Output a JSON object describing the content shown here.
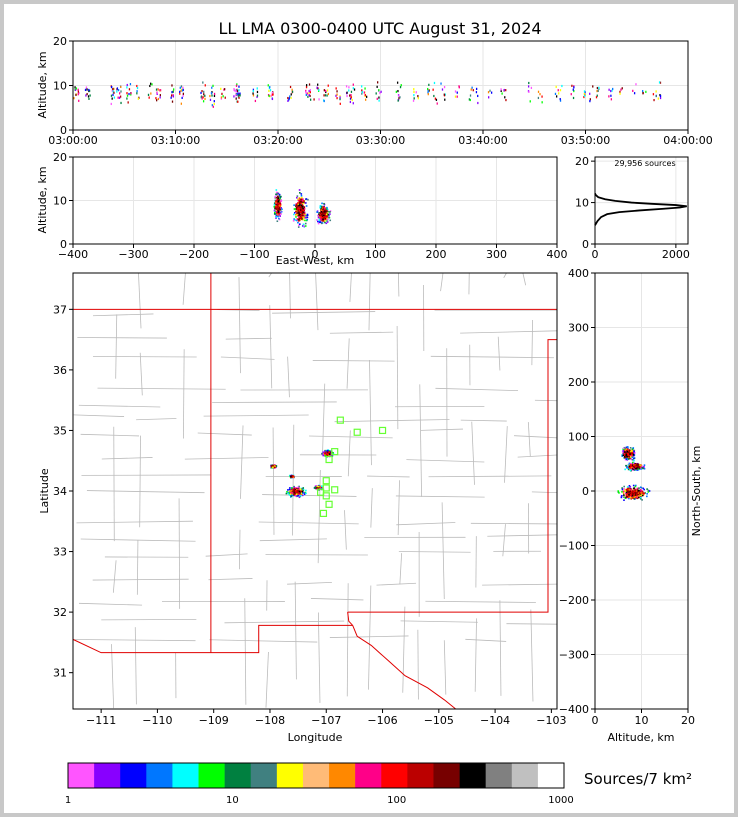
{
  "chart_data": [
    {
      "id": "time_altitude",
      "type": "scatter",
      "title": "LL LMA 0300-0400 UTC August 31, 2024",
      "xlabel": "",
      "ylabel": "Altitude, km",
      "xlim": [
        "03:00:00",
        "04:00:00"
      ],
      "ylim": [
        0,
        20
      ],
      "xticks": [
        "03:00:00",
        "03:10:00",
        "03:20:00",
        "03:30:00",
        "03:40:00",
        "03:50:00",
        "04:00:00"
      ],
      "yticks": [
        "0",
        "10",
        "20"
      ],
      "grid": true,
      "typical_altitude_range_km": [
        5,
        12
      ]
    },
    {
      "id": "eastwest_altitude",
      "type": "heatmap",
      "xlabel": "East-West, km",
      "ylabel": "Altitude, km",
      "xlim": [
        -400,
        400
      ],
      "ylim": [
        0,
        20
      ],
      "xticks": [
        "−400",
        "−300",
        "−200",
        "−100",
        "0",
        "100",
        "200",
        "300",
        "400"
      ],
      "yticks": [
        "0",
        "10",
        "20"
      ],
      "grid": true,
      "clusters": [
        {
          "x": [
            -70,
            -55
          ],
          "alt": [
            5,
            13
          ]
        },
        {
          "x": [
            -40,
            -10
          ],
          "alt": [
            3,
            13
          ]
        },
        {
          "x": [
            0,
            25
          ],
          "alt": [
            4,
            10
          ]
        }
      ]
    },
    {
      "id": "altitude_histogram",
      "type": "line",
      "annotation": "29,956 sources",
      "xlim": [
        0,
        2300
      ],
      "ylim": [
        0,
        21
      ],
      "xticks": [
        "0",
        "2000"
      ],
      "yticks": [
        "0",
        "10",
        "20"
      ],
      "grid": true,
      "points": [
        [
          0,
          4.5
        ],
        [
          60,
          5.5
        ],
        [
          150,
          6.5
        ],
        [
          300,
          7.2
        ],
        [
          600,
          7.7
        ],
        [
          1100,
          8.1
        ],
        [
          1700,
          8.5
        ],
        [
          2100,
          8.8
        ],
        [
          2270,
          9.1
        ],
        [
          2000,
          9.4
        ],
        [
          1400,
          9.7
        ],
        [
          900,
          10.0
        ],
        [
          500,
          10.4
        ],
        [
          250,
          10.8
        ],
        [
          80,
          11.3
        ],
        [
          20,
          11.8
        ],
        [
          0,
          12.2
        ]
      ]
    },
    {
      "id": "plan_view_map",
      "type": "scatter",
      "xlabel": "Longitude",
      "ylabel": "Latitude",
      "xlim": [
        -111.5,
        -102.9
      ],
      "ylim": [
        30.4,
        37.6
      ],
      "xticks": [
        "−111",
        "−110",
        "−109",
        "−108",
        "−107",
        "−106",
        "−105",
        "−104",
        "−103"
      ],
      "yticks": [
        "31",
        "32",
        "33",
        "34",
        "35",
        "36",
        "37"
      ],
      "state_border_color": "#e00000",
      "county_line_color": "#bbbbbb",
      "station_color": "#66ff33",
      "stations": [
        [
          -106.75,
          35.17
        ],
        [
          -106.45,
          34.97
        ],
        [
          -106.0,
          35.0
        ],
        [
          -106.85,
          34.65
        ],
        [
          -106.95,
          34.52
        ],
        [
          -107.0,
          34.17
        ],
        [
          -107.0,
          34.05
        ],
        [
          -106.85,
          34.02
        ],
        [
          -107.1,
          33.98
        ],
        [
          -107.0,
          33.92
        ],
        [
          -106.95,
          33.78
        ],
        [
          -107.05,
          33.63
        ]
      ],
      "source_clusters": [
        {
          "lon": -107.55,
          "lat": 34.0,
          "radius_deg": 0.2
        },
        {
          "lon": -107.15,
          "lat": 34.07,
          "radius_deg": 0.09
        },
        {
          "lon": -106.98,
          "lat": 34.63,
          "radius_deg": 0.12
        },
        {
          "lon": -107.95,
          "lat": 34.42,
          "radius_deg": 0.07
        },
        {
          "lon": -107.62,
          "lat": 34.25,
          "radius_deg": 0.05
        }
      ]
    },
    {
      "id": "northsouth_altitude",
      "type": "heatmap",
      "xlabel": "Altitude, km",
      "ylabel": "North-South, km",
      "xlim": [
        0,
        20
      ],
      "ylim": [
        -400,
        400
      ],
      "xticks": [
        "0",
        "10",
        "20"
      ],
      "yticks": [
        "−400",
        "−300",
        "−200",
        "−100",
        "0",
        "100",
        "200",
        "300",
        "400"
      ],
      "grid": true,
      "clusters": [
        {
          "alt": [
            5,
            9
          ],
          "ns": [
            55,
            85
          ]
        },
        {
          "alt": [
            6,
            11
          ],
          "ns": [
            38,
            55
          ]
        },
        {
          "alt": [
            4,
            12
          ],
          "ns": [
            -20,
            15
          ]
        }
      ]
    }
  ],
  "colorbar": {
    "label": "Sources/7 km²",
    "ticks": [
      "1",
      "10",
      "100",
      "1000"
    ],
    "colors": [
      "#ff55ff",
      "#8800ff",
      "#0000ff",
      "#0077ff",
      "#00ffff",
      "#00ff00",
      "#008040",
      "#408080",
      "#ffff00",
      "#ffbb77",
      "#ff8800",
      "#ff0088",
      "#ff0000",
      "#bb0000",
      "#770000",
      "#000000",
      "#808080",
      "#c0c0c0",
      "#ffffff"
    ]
  }
}
